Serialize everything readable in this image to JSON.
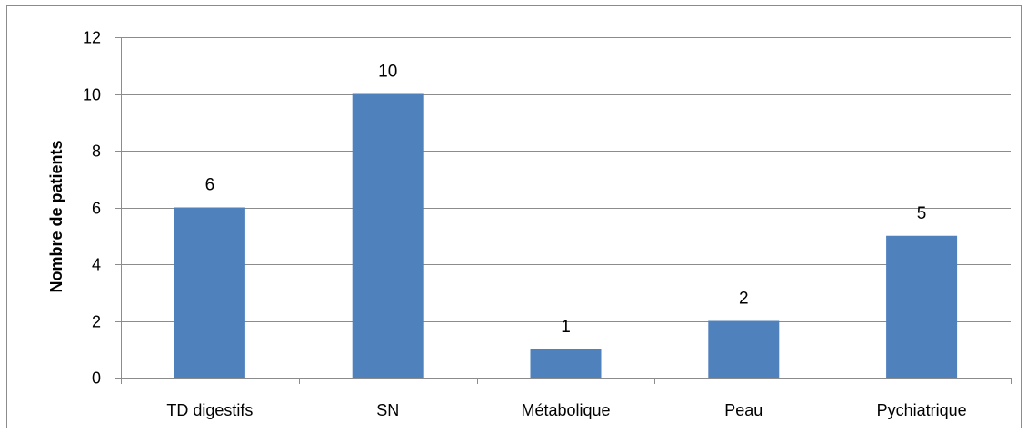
{
  "chart_data": {
    "type": "bar",
    "title": "",
    "xlabel": "",
    "ylabel": "Nombre de patients",
    "categories": [
      "TD digestifs",
      "SN",
      "Métabolique",
      "Peau",
      "Pychiatrique"
    ],
    "values": [
      6,
      10,
      1,
      2,
      5
    ],
    "ylim": [
      0,
      12
    ],
    "yticks": [
      0,
      2,
      4,
      6,
      8,
      10,
      12
    ],
    "grid": true,
    "legend": "none",
    "bar_color": "#4f81bd",
    "data_labels": true
  }
}
